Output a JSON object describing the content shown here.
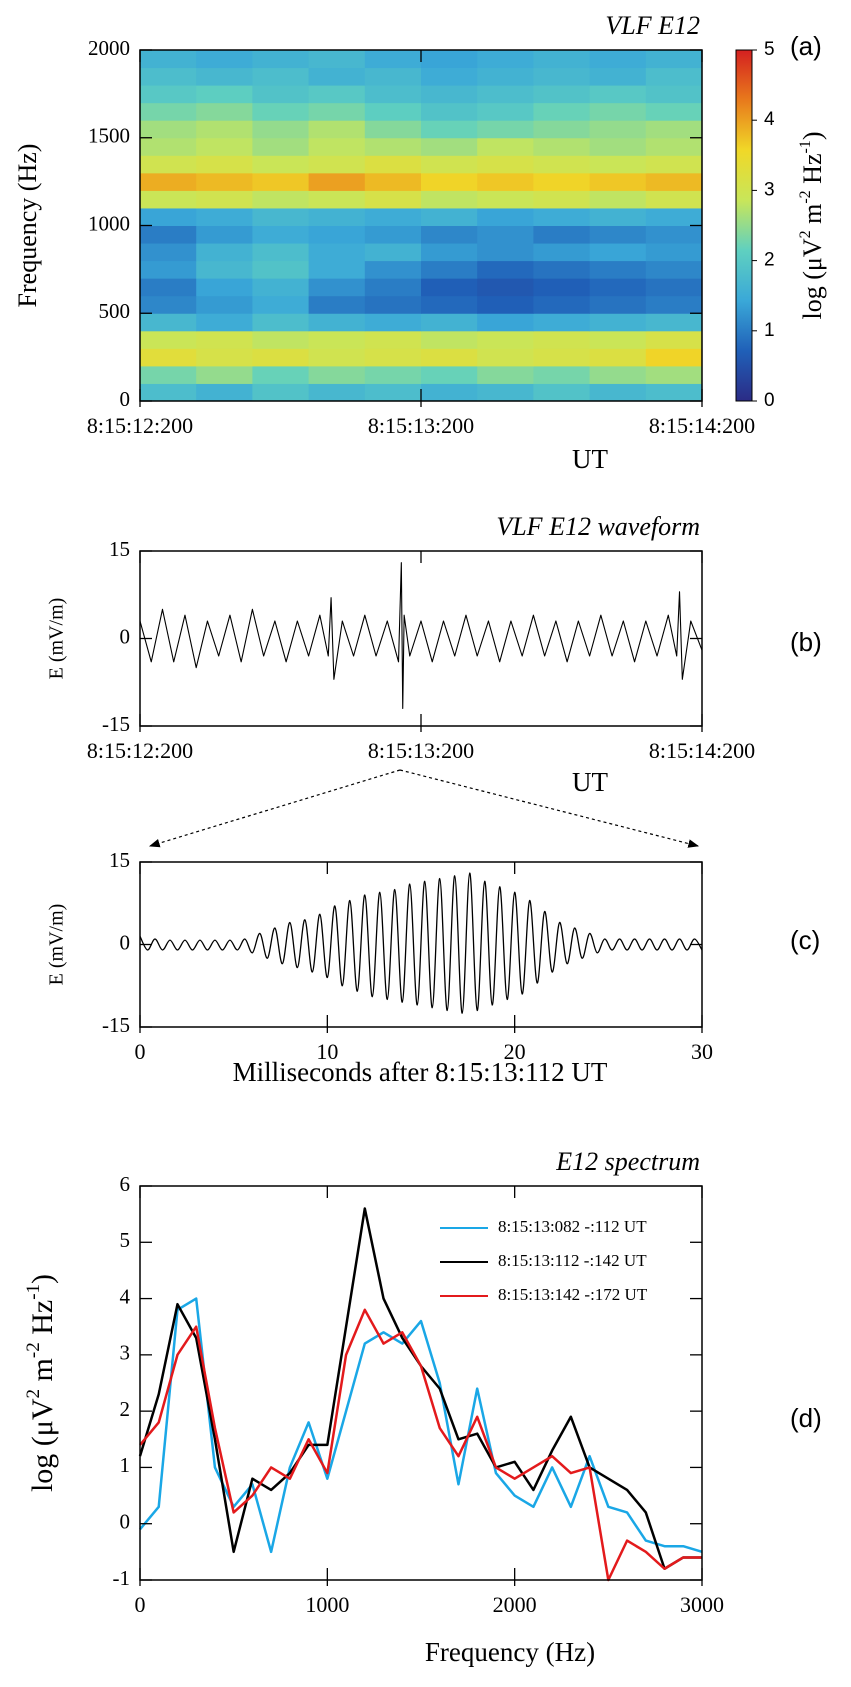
{
  "chart_data": [
    {
      "type": "heatmap",
      "title": "VLF  E12",
      "panel_label": "(a)",
      "ylabel": "Frequency (Hz)",
      "xlabel": "UT",
      "xlim": [
        0,
        2
      ],
      "xticks": [
        {
          "value": 0,
          "label": "8:15:12:200"
        },
        {
          "value": 1,
          "label": "8:15:13:200"
        },
        {
          "value": 2,
          "label": "8:15:14:200"
        }
      ],
      "ylim": [
        0,
        2000
      ],
      "yticks": [
        0,
        500,
        1000,
        1500,
        2000
      ],
      "x_bins": [
        0,
        0.2,
        0.4,
        0.6,
        0.8,
        1.0,
        1.2,
        1.4,
        1.6,
        1.8,
        2.0
      ],
      "y_bins": [
        0,
        100,
        200,
        300,
        400,
        500,
        600,
        700,
        800,
        900,
        1000,
        1100,
        1200,
        1300,
        1400,
        1500,
        1600,
        1700,
        1800,
        1900,
        2000
      ],
      "z": [
        [
          1.8,
          1.6,
          1.9,
          1.7,
          1.8,
          1.6,
          1.7,
          1.9,
          1.7,
          1.8
        ],
        [
          2.3,
          2.5,
          2.2,
          2.4,
          2.3,
          2.2,
          2.4,
          2.3,
          2.5,
          2.6
        ],
        [
          3.3,
          3.1,
          3.2,
          3.0,
          3.1,
          3.2,
          3.0,
          3.1,
          3.2,
          3.6
        ],
        [
          2.9,
          3.0,
          2.8,
          2.9,
          3.0,
          2.8,
          2.9,
          3.0,
          2.9,
          3.1
        ],
        [
          1.7,
          1.5,
          1.8,
          1.6,
          1.5,
          1.6,
          1.4,
          1.5,
          1.6,
          1.7
        ],
        [
          1.1,
          1.3,
          1.5,
          1.0,
          0.9,
          0.8,
          0.7,
          0.8,
          0.9,
          1.0
        ],
        [
          1.0,
          1.4,
          1.6,
          1.2,
          1.0,
          0.7,
          0.6,
          0.7,
          0.8,
          0.9
        ],
        [
          1.3,
          1.7,
          1.9,
          1.5,
          1.2,
          1.0,
          0.8,
          0.9,
          1.0,
          1.1
        ],
        [
          1.2,
          1.6,
          1.8,
          1.5,
          1.6,
          1.3,
          1.2,
          1.3,
          1.4,
          1.3
        ],
        [
          1.0,
          1.3,
          1.5,
          1.4,
          1.3,
          1.1,
          1.2,
          1.0,
          1.1,
          1.2
        ],
        [
          1.4,
          1.5,
          1.7,
          1.6,
          1.5,
          1.6,
          1.4,
          1.5,
          1.6,
          1.5
        ],
        [
          2.9,
          3.0,
          2.8,
          2.9,
          3.1,
          2.8,
          2.9,
          3.0,
          2.8,
          3.0
        ],
        [
          3.9,
          3.8,
          3.7,
          4.0,
          3.8,
          3.6,
          3.7,
          3.6,
          3.7,
          3.8
        ],
        [
          3.0,
          3.1,
          2.9,
          3.0,
          3.2,
          3.0,
          3.1,
          3.0,
          2.9,
          3.0
        ],
        [
          2.7,
          2.8,
          2.6,
          2.8,
          2.7,
          2.6,
          2.8,
          2.7,
          2.6,
          2.7
        ],
        [
          2.6,
          2.7,
          2.5,
          2.7,
          2.4,
          2.2,
          2.3,
          2.4,
          2.5,
          2.6
        ],
        [
          2.3,
          2.4,
          2.2,
          2.3,
          2.1,
          1.9,
          2.0,
          2.2,
          2.3,
          2.2
        ],
        [
          2.0,
          2.1,
          1.9,
          2.0,
          1.8,
          1.7,
          1.8,
          1.9,
          2.0,
          1.9
        ],
        [
          1.8,
          1.7,
          1.8,
          1.6,
          1.7,
          1.5,
          1.6,
          1.7,
          1.6,
          1.8
        ],
        [
          1.6,
          1.5,
          1.6,
          1.7,
          1.5,
          1.4,
          1.5,
          1.6,
          1.5,
          1.6
        ]
      ],
      "colormap": [
        "#2b2b86",
        "#2060b8",
        "#3aa8d8",
        "#5fd0c0",
        "#c8e65a",
        "#f0d828",
        "#e87a1c",
        "#d42020"
      ],
      "colorbar_lim": [
        0,
        5
      ],
      "colorbar_ticks": [
        0,
        1,
        2,
        3,
        4,
        5
      ],
      "colorbar_label": [
        {
          "text": "log (μV"
        },
        {
          "sup": "2"
        },
        {
          "text": " m"
        },
        {
          "sup": "-2"
        },
        {
          "text": " Hz"
        },
        {
          "sup": "-1"
        },
        {
          "text": ")"
        }
      ]
    },
    {
      "type": "line",
      "title": "VLF  E12 waveform",
      "panel_label": "(b)",
      "ylabel": "E (mV/m)",
      "xlabel": "UT",
      "color": "#000000",
      "xlim": [
        0,
        2
      ],
      "xticks": [
        {
          "value": 0,
          "label": "8:15:12:200"
        },
        {
          "value": 1,
          "label": "8:15:13:200"
        },
        {
          "value": 2,
          "label": "8:15:14:200"
        }
      ],
      "ylim": [
        -15,
        15
      ],
      "yticks": [
        -15,
        0,
        15
      ],
      "x": [
        0,
        0.04,
        0.08,
        0.12,
        0.16,
        0.2,
        0.24,
        0.28,
        0.32,
        0.36,
        0.4,
        0.44,
        0.48,
        0.52,
        0.56,
        0.6,
        0.64,
        0.67,
        0.68,
        0.69,
        0.72,
        0.76,
        0.8,
        0.84,
        0.88,
        0.92,
        0.93,
        0.935,
        0.94,
        0.96,
        1.0,
        1.04,
        1.08,
        1.12,
        1.16,
        1.2,
        1.24,
        1.28,
        1.32,
        1.36,
        1.4,
        1.44,
        1.48,
        1.52,
        1.56,
        1.6,
        1.64,
        1.68,
        1.72,
        1.76,
        1.8,
        1.84,
        1.88,
        1.91,
        1.92,
        1.93,
        1.96,
        2.0
      ],
      "values": [
        3,
        -4,
        5,
        -4,
        4,
        -5,
        3,
        -3,
        4,
        -4,
        5,
        -3,
        3,
        -4,
        3,
        -3,
        4,
        -3,
        7,
        -7,
        3,
        -3,
        4,
        -3,
        3,
        -4,
        13,
        -12,
        4,
        -3,
        3,
        -4,
        3,
        -3,
        4,
        -3,
        3,
        -4,
        3,
        -3,
        4,
        -3,
        3,
        -4,
        3,
        -3,
        4,
        -3,
        3,
        -4,
        3,
        -3,
        4,
        -3,
        8,
        -7,
        3,
        -2
      ]
    },
    {
      "type": "line",
      "smooth": true,
      "panel_label": "(c)",
      "ylabel": "E (mV/m)",
      "xlabel": "Milliseconds after 8:15:13:112 UT",
      "color": "#000000",
      "xlim": [
        0,
        30
      ],
      "xticks": [
        0,
        10,
        20,
        30
      ],
      "ylim": [
        -15,
        15
      ],
      "yticks": [
        -15,
        0,
        15
      ],
      "x": [
        0,
        0.4,
        0.8,
        1.2,
        1.6,
        2,
        2.4,
        2.8,
        3.2,
        3.6,
        4,
        4.4,
        4.8,
        5.2,
        5.6,
        6,
        6.4,
        6.8,
        7.2,
        7.6,
        8,
        8.4,
        8.8,
        9.2,
        9.6,
        10,
        10.4,
        10.8,
        11.2,
        11.6,
        12,
        12.4,
        12.8,
        13.2,
        13.6,
        14,
        14.4,
        14.8,
        15.2,
        15.6,
        16,
        16.4,
        16.8,
        17.2,
        17.6,
        18,
        18.4,
        18.8,
        19.2,
        19.6,
        20,
        20.4,
        20.8,
        21.2,
        21.6,
        22,
        22.4,
        22.8,
        23.2,
        23.6,
        24,
        24.4,
        24.8,
        25.2,
        25.6,
        26,
        26.4,
        26.8,
        27.2,
        27.6,
        28,
        28.4,
        28.8,
        29.2,
        29.6,
        30
      ],
      "values": [
        1.5,
        -1,
        1,
        -1,
        0.8,
        -1,
        0.8,
        -1,
        0.8,
        -1,
        0.8,
        -1,
        0.8,
        -1,
        1,
        -1.5,
        2,
        -2.5,
        3,
        -3.5,
        4,
        -4.2,
        4.5,
        -5,
        5.5,
        -6,
        7,
        -7.5,
        8,
        -8.5,
        9,
        -9.5,
        9.5,
        -10,
        10,
        -10.5,
        11,
        -11,
        11.5,
        -11.5,
        12,
        -12,
        12.5,
        -12.5,
        13,
        -12,
        11.5,
        -11,
        10.5,
        -10,
        9.5,
        -9,
        8,
        -7,
        6,
        -5,
        4,
        -3.5,
        3,
        -2.5,
        2,
        -1.5,
        1,
        -1,
        1,
        -1,
        1,
        -1,
        1,
        -1,
        1,
        -1,
        1,
        -1,
        1,
        -1
      ]
    },
    {
      "type": "line",
      "title": "E12 spectrum",
      "panel_label": "(d)",
      "xlabel": "Frequency (Hz)",
      "ylabel": [
        {
          "text": "log (μV"
        },
        {
          "sup": "2"
        },
        {
          "text": " m"
        },
        {
          "sup": "-2"
        },
        {
          "text": " Hz"
        },
        {
          "sup": "-1"
        },
        {
          "text": ")"
        }
      ],
      "xlim": [
        0,
        3000
      ],
      "xticks": [
        0,
        1000,
        2000,
        3000
      ],
      "ylim": [
        -1,
        6
      ],
      "yticks": [
        -1,
        0,
        1,
        2,
        3,
        4,
        5,
        6
      ],
      "legend": "upper right",
      "x": [
        0,
        100,
        200,
        300,
        400,
        500,
        600,
        700,
        800,
        900,
        1000,
        1100,
        1200,
        1300,
        1400,
        1500,
        1600,
        1700,
        1800,
        1900,
        2000,
        2100,
        2200,
        2300,
        2400,
        2500,
        2600,
        2700,
        2800,
        2900,
        3000
      ],
      "series": [
        {
          "name": "8:15:13:082 -:112 UT",
          "color": "#1aa7e6",
          "values": [
            -0.1,
            0.3,
            3.8,
            4.0,
            1.0,
            0.3,
            0.7,
            -0.5,
            1.0,
            1.8,
            0.8,
            2.0,
            3.2,
            3.4,
            3.2,
            3.6,
            2.5,
            0.7,
            2.4,
            0.9,
            0.5,
            0.3,
            1.0,
            0.3,
            1.2,
            0.3,
            0.2,
            -0.3,
            -0.4,
            -0.4,
            -0.5
          ]
        },
        {
          "name": "8:15:13:112 -:142 UT",
          "color": "#000000",
          "values": [
            1.2,
            2.3,
            3.9,
            3.3,
            1.5,
            -0.5,
            0.8,
            0.6,
            0.9,
            1.4,
            1.4,
            3.5,
            5.6,
            4.0,
            3.3,
            2.8,
            2.4,
            1.5,
            1.6,
            1.0,
            1.1,
            0.6,
            1.3,
            1.9,
            1.0,
            0.8,
            0.6,
            0.2,
            -0.8,
            -0.6,
            -0.6
          ]
        },
        {
          "name": "8:15:13:142 -:172 UT",
          "color": "#e31a1c",
          "values": [
            1.4,
            1.8,
            3.0,
            3.5,
            1.7,
            0.2,
            0.5,
            1.0,
            0.8,
            1.5,
            0.9,
            3.0,
            3.8,
            3.2,
            3.4,
            2.8,
            1.7,
            1.2,
            1.9,
            1.0,
            0.8,
            1.0,
            1.2,
            0.9,
            1.0,
            -1.0,
            -0.3,
            -0.5,
            -0.8,
            -0.6,
            -0.6
          ]
        }
      ]
    }
  ]
}
